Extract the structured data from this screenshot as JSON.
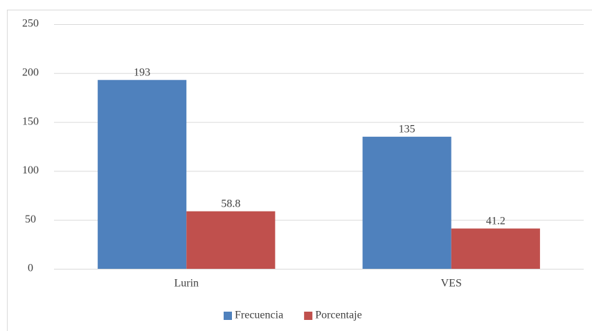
{
  "chart_data": {
    "type": "bar",
    "categories": [
      "Lurin",
      "VES"
    ],
    "series": [
      {
        "name": "Frecuencia",
        "color": "#4f81bd",
        "values": [
          193,
          135
        ]
      },
      {
        "name": "Porcentaje",
        "color": "#c0504d",
        "values": [
          58.8,
          41.2
        ]
      }
    ],
    "ylim": [
      0,
      250
    ],
    "yticks": [
      0,
      50,
      100,
      150,
      200,
      250
    ],
    "grid": true,
    "legend": "bottom"
  }
}
